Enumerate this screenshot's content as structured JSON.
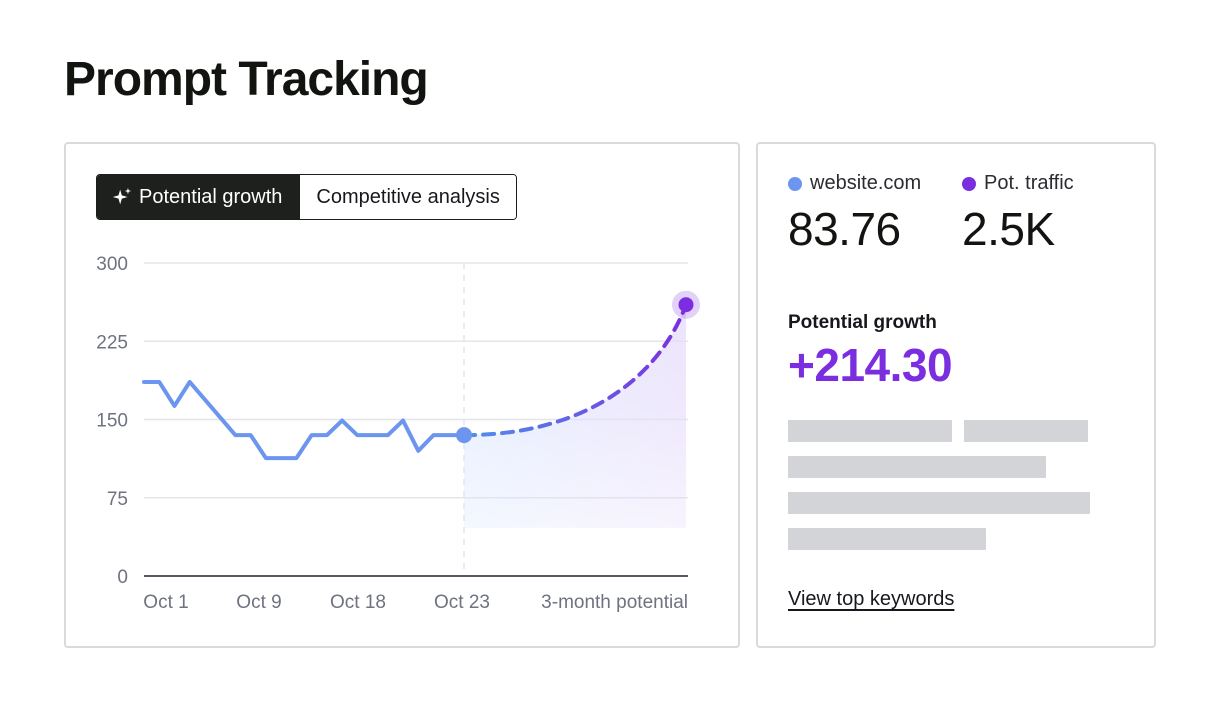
{
  "page": {
    "title": "Prompt Tracking"
  },
  "toggle": {
    "active_label": "Potential growth",
    "inactive_label": "Competitive analysis",
    "active_icon": "sparkle-icon"
  },
  "chart_data": {
    "type": "line",
    "title": "",
    "xlabel": "",
    "ylabel": "",
    "ylim": [
      0,
      300
    ],
    "y_ticks": [
      0,
      75,
      150,
      225,
      300
    ],
    "x_tick_labels": [
      "Oct 1",
      "Oct 9",
      "Oct 18",
      "Oct 23",
      "3-month potential"
    ],
    "grid": true,
    "series": [
      {
        "style": "solid",
        "color": "#6b95ee",
        "values": [
          186,
          186,
          163,
          186,
          169,
          152,
          135,
          135,
          113,
          113,
          113,
          135,
          135,
          149,
          135,
          135,
          135,
          149,
          120,
          135,
          135,
          135
        ]
      },
      {
        "style": "dashed",
        "color_start": "#4f93ea",
        "color_end": "#7a2ee0",
        "x": [
          0,
          1
        ],
        "start_value": 135,
        "end_value": 260
      }
    ],
    "colors": {
      "grid": "#e4e5e8",
      "axis": "#555866",
      "history_fill": "#dbe8ff",
      "potential_fill": "#e6dbfb",
      "end_marker": "#7a2ee0"
    }
  },
  "stats": {
    "domain": {
      "label": "website.com",
      "value": "83.76",
      "color": "#6b95ee"
    },
    "traffic": {
      "label": "Pot. traffic",
      "value": "2.5K",
      "color": "#7a2ee0"
    },
    "growth_label": "Potential growth",
    "growth_value": "+214.30",
    "view_link": "View top keywords"
  }
}
